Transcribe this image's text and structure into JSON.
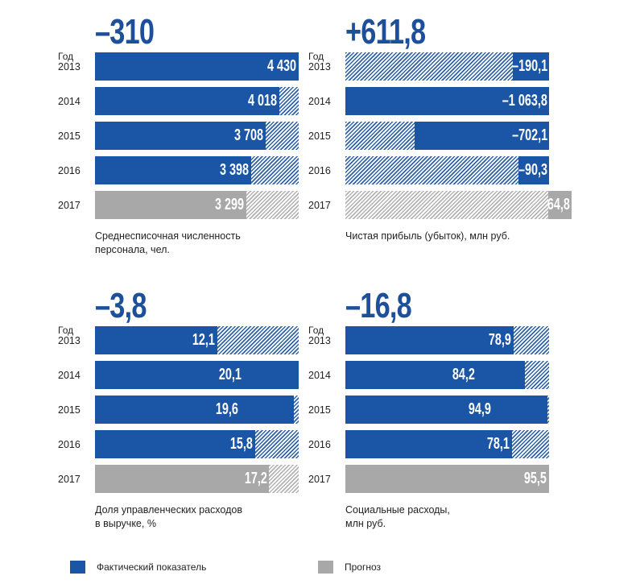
{
  "chart_data": [
    {
      "type": "bar",
      "id": "headcount",
      "headline": "–310",
      "year_label": "Год",
      "categories": [
        "2013",
        "2014",
        "2015",
        "2016",
        "2017"
      ],
      "values": [
        4430,
        4018,
        3708,
        3398,
        3299
      ],
      "value_labels": [
        "4 430",
        "4 018",
        "3 708",
        "3 398",
        "3 299"
      ],
      "forecast": [
        false,
        false,
        false,
        false,
        true
      ],
      "caption": [
        "Среднесписочная численность",
        "персонала, чел."
      ],
      "scale_max": 4430
    },
    {
      "type": "bar",
      "id": "net_profit",
      "headline": "+611,8",
      "year_label": "Год",
      "categories": [
        "2013",
        "2014",
        "2015",
        "2016",
        "2017"
      ],
      "values": [
        -190.1,
        -1063.8,
        -702.1,
        -90.3,
        64.8
      ],
      "value_labels": [
        "–190,1",
        "–1 063,8",
        "–702,1",
        "–90,3",
        "64,8"
      ],
      "forecast": [
        false,
        false,
        false,
        false,
        true
      ],
      "caption": [
        "Чистая прибыль (убыток), млн руб."
      ],
      "scale_max": 1063.8
    },
    {
      "type": "bar",
      "id": "admin_share",
      "headline": "–3,8",
      "year_label": "Год",
      "categories": [
        "2013",
        "2014",
        "2015",
        "2016",
        "2017"
      ],
      "values": [
        12.1,
        20.1,
        19.6,
        15.8,
        17.2
      ],
      "value_labels": [
        "12,1",
        "20,1",
        "19,6",
        "15,8",
        "17,2"
      ],
      "forecast": [
        false,
        false,
        false,
        false,
        true
      ],
      "caption": [
        "Доля управленческих расходов",
        "в выручке, %"
      ],
      "scale_max": 20.1
    },
    {
      "type": "bar",
      "id": "social_costs",
      "headline": "–16,8",
      "year_label": "Год",
      "categories": [
        "2013",
        "2014",
        "2015",
        "2016",
        "2017"
      ],
      "values": [
        78.9,
        84.2,
        94.9,
        78.1,
        95.5
      ],
      "value_labels": [
        "78,9",
        "84,2",
        "94,9",
        "78,1",
        "95,5"
      ],
      "forecast": [
        false,
        false,
        false,
        false,
        true
      ],
      "caption": [
        "Социальные расходы,",
        "млн руб."
      ],
      "scale_max": 95.5
    }
  ],
  "legend": [
    {
      "label": "Фактический показатель",
      "color": "#1a55a6"
    },
    {
      "label": "Прогноз",
      "color": "#a8a8a8"
    }
  ],
  "colors": {
    "actual": "#1a55a6",
    "forecast": "#a8a8a8",
    "headline": "#1d4f9a"
  }
}
